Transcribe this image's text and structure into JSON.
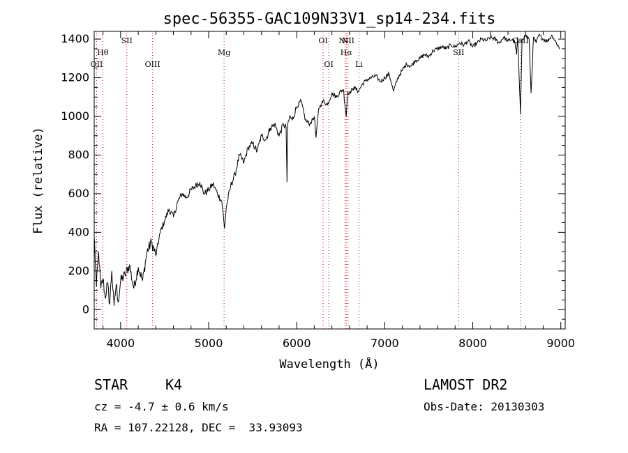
{
  "chart_data": {
    "type": "line",
    "title": "spec-56355-GAC109N33V1_sp14-234.fits",
    "xlabel": "Wavelength (Å)",
    "ylabel": "Flux (relative)",
    "xlim": [
      3700,
      9050
    ],
    "ylim": [
      -100,
      1440
    ],
    "xticks": [
      4000,
      5000,
      6000,
      7000,
      8000,
      9000
    ],
    "yticks": [
      0,
      200,
      400,
      600,
      800,
      1000,
      1200,
      1400
    ],
    "grid": false,
    "line_color": "#000000",
    "marker_color": "#cc0000",
    "series": [
      {
        "x": [
          3700,
          3725,
          3750,
          3775,
          3800,
          3825,
          3850,
          3875,
          3900,
          3925,
          3950,
          3975,
          4000,
          4050,
          4100,
          4150,
          4200,
          4250,
          4300,
          4350,
          4400,
          4450,
          4500,
          4550,
          4600,
          4650,
          4700,
          4750,
          4800,
          4850,
          4900,
          4950,
          5000,
          5050,
          5100,
          5150,
          5180,
          5200,
          5250,
          5300,
          5350,
          5400,
          5450,
          5500,
          5550,
          5600,
          5650,
          5700,
          5750,
          5800,
          5850,
          5880,
          5890,
          5896,
          5920,
          5950,
          6000,
          6050,
          6100,
          6150,
          6200,
          6220,
          6250,
          6300,
          6350,
          6400,
          6450,
          6500,
          6530,
          6563,
          6580,
          6600,
          6650,
          6700,
          6750,
          6800,
          6850,
          6900,
          6950,
          7000,
          7050,
          7100,
          7150,
          7200,
          7250,
          7300,
          7350,
          7400,
          7450,
          7500,
          7550,
          7600,
          7650,
          7700,
          7750,
          7800,
          7850,
          7900,
          7950,
          8000,
          8050,
          8100,
          8150,
          8200,
          8250,
          8300,
          8350,
          8400,
          8450,
          8480,
          8498,
          8510,
          8542,
          8560,
          8600,
          8640,
          8662,
          8690,
          8720,
          8750,
          8800,
          8850,
          8900,
          8950,
          8990
        ],
        "y": [
          380,
          120,
          300,
          110,
          160,
          60,
          140,
          30,
          200,
          20,
          130,
          40,
          150,
          180,
          230,
          110,
          220,
          150,
          300,
          350,
          280,
          400,
          460,
          520,
          480,
          560,
          600,
          580,
          620,
          640,
          660,
          600,
          620,
          650,
          600,
          560,
          420,
          530,
          640,
          700,
          800,
          760,
          840,
          860,
          820,
          900,
          880,
          940,
          960,
          900,
          960,
          940,
          660,
          940,
          1000,
          980,
          1050,
          1080,
          980,
          960,
          1000,
          890,
          1040,
          1080,
          1060,
          1120,
          1100,
          1130,
          1140,
          1000,
          1130,
          1120,
          1150,
          1130,
          1170,
          1190,
          1200,
          1210,
          1180,
          1200,
          1220,
          1130,
          1200,
          1240,
          1270,
          1260,
          1290,
          1300,
          1320,
          1310,
          1340,
          1350,
          1360,
          1350,
          1370,
          1360,
          1380,
          1370,
          1390,
          1360,
          1380,
          1400,
          1390,
          1410,
          1400,
          1380,
          1410,
          1390,
          1400,
          1380,
          1320,
          1410,
          1010,
          1400,
          1420,
          1400,
          1120,
          1410,
          1380,
          1420,
          1400,
          1390,
          1420,
          1380,
          1350
        ]
      }
    ],
    "lines": [
      {
        "label": "OII",
        "x": 3727,
        "row": 3
      },
      {
        "label": "Hθ",
        "x": 3797,
        "row": 2
      },
      {
        "label": "SII",
        "x": 4070,
        "row": 1
      },
      {
        "label": "OIII",
        "x": 4363,
        "row": 3
      },
      {
        "label": "Mg",
        "x": 5175,
        "row": 2
      },
      {
        "label": "OI",
        "x": 6300,
        "row": 1
      },
      {
        "label": "OI",
        "x": 6364,
        "row": 3
      },
      {
        "label": "NII",
        "x": 6550,
        "row": 1
      },
      {
        "label": "Hα",
        "x": 6563,
        "row": 2
      },
      {
        "label": "NII",
        "x": 6584,
        "row": 1
      },
      {
        "label": "Li",
        "x": 6708,
        "row": 3
      },
      {
        "label": "SII",
        "x": 7840,
        "row": 2
      },
      {
        "label": "CaII",
        "x": 8542,
        "row": 1
      }
    ]
  },
  "info": {
    "object_class": "STAR",
    "subclass": "K4",
    "survey": "LAMOST DR2",
    "cz": "cz = -4.7 ± 0.6 km/s",
    "obs_date": "Obs-Date: 20130303",
    "radec": "RA = 107.22128, DEC =  33.93093"
  }
}
